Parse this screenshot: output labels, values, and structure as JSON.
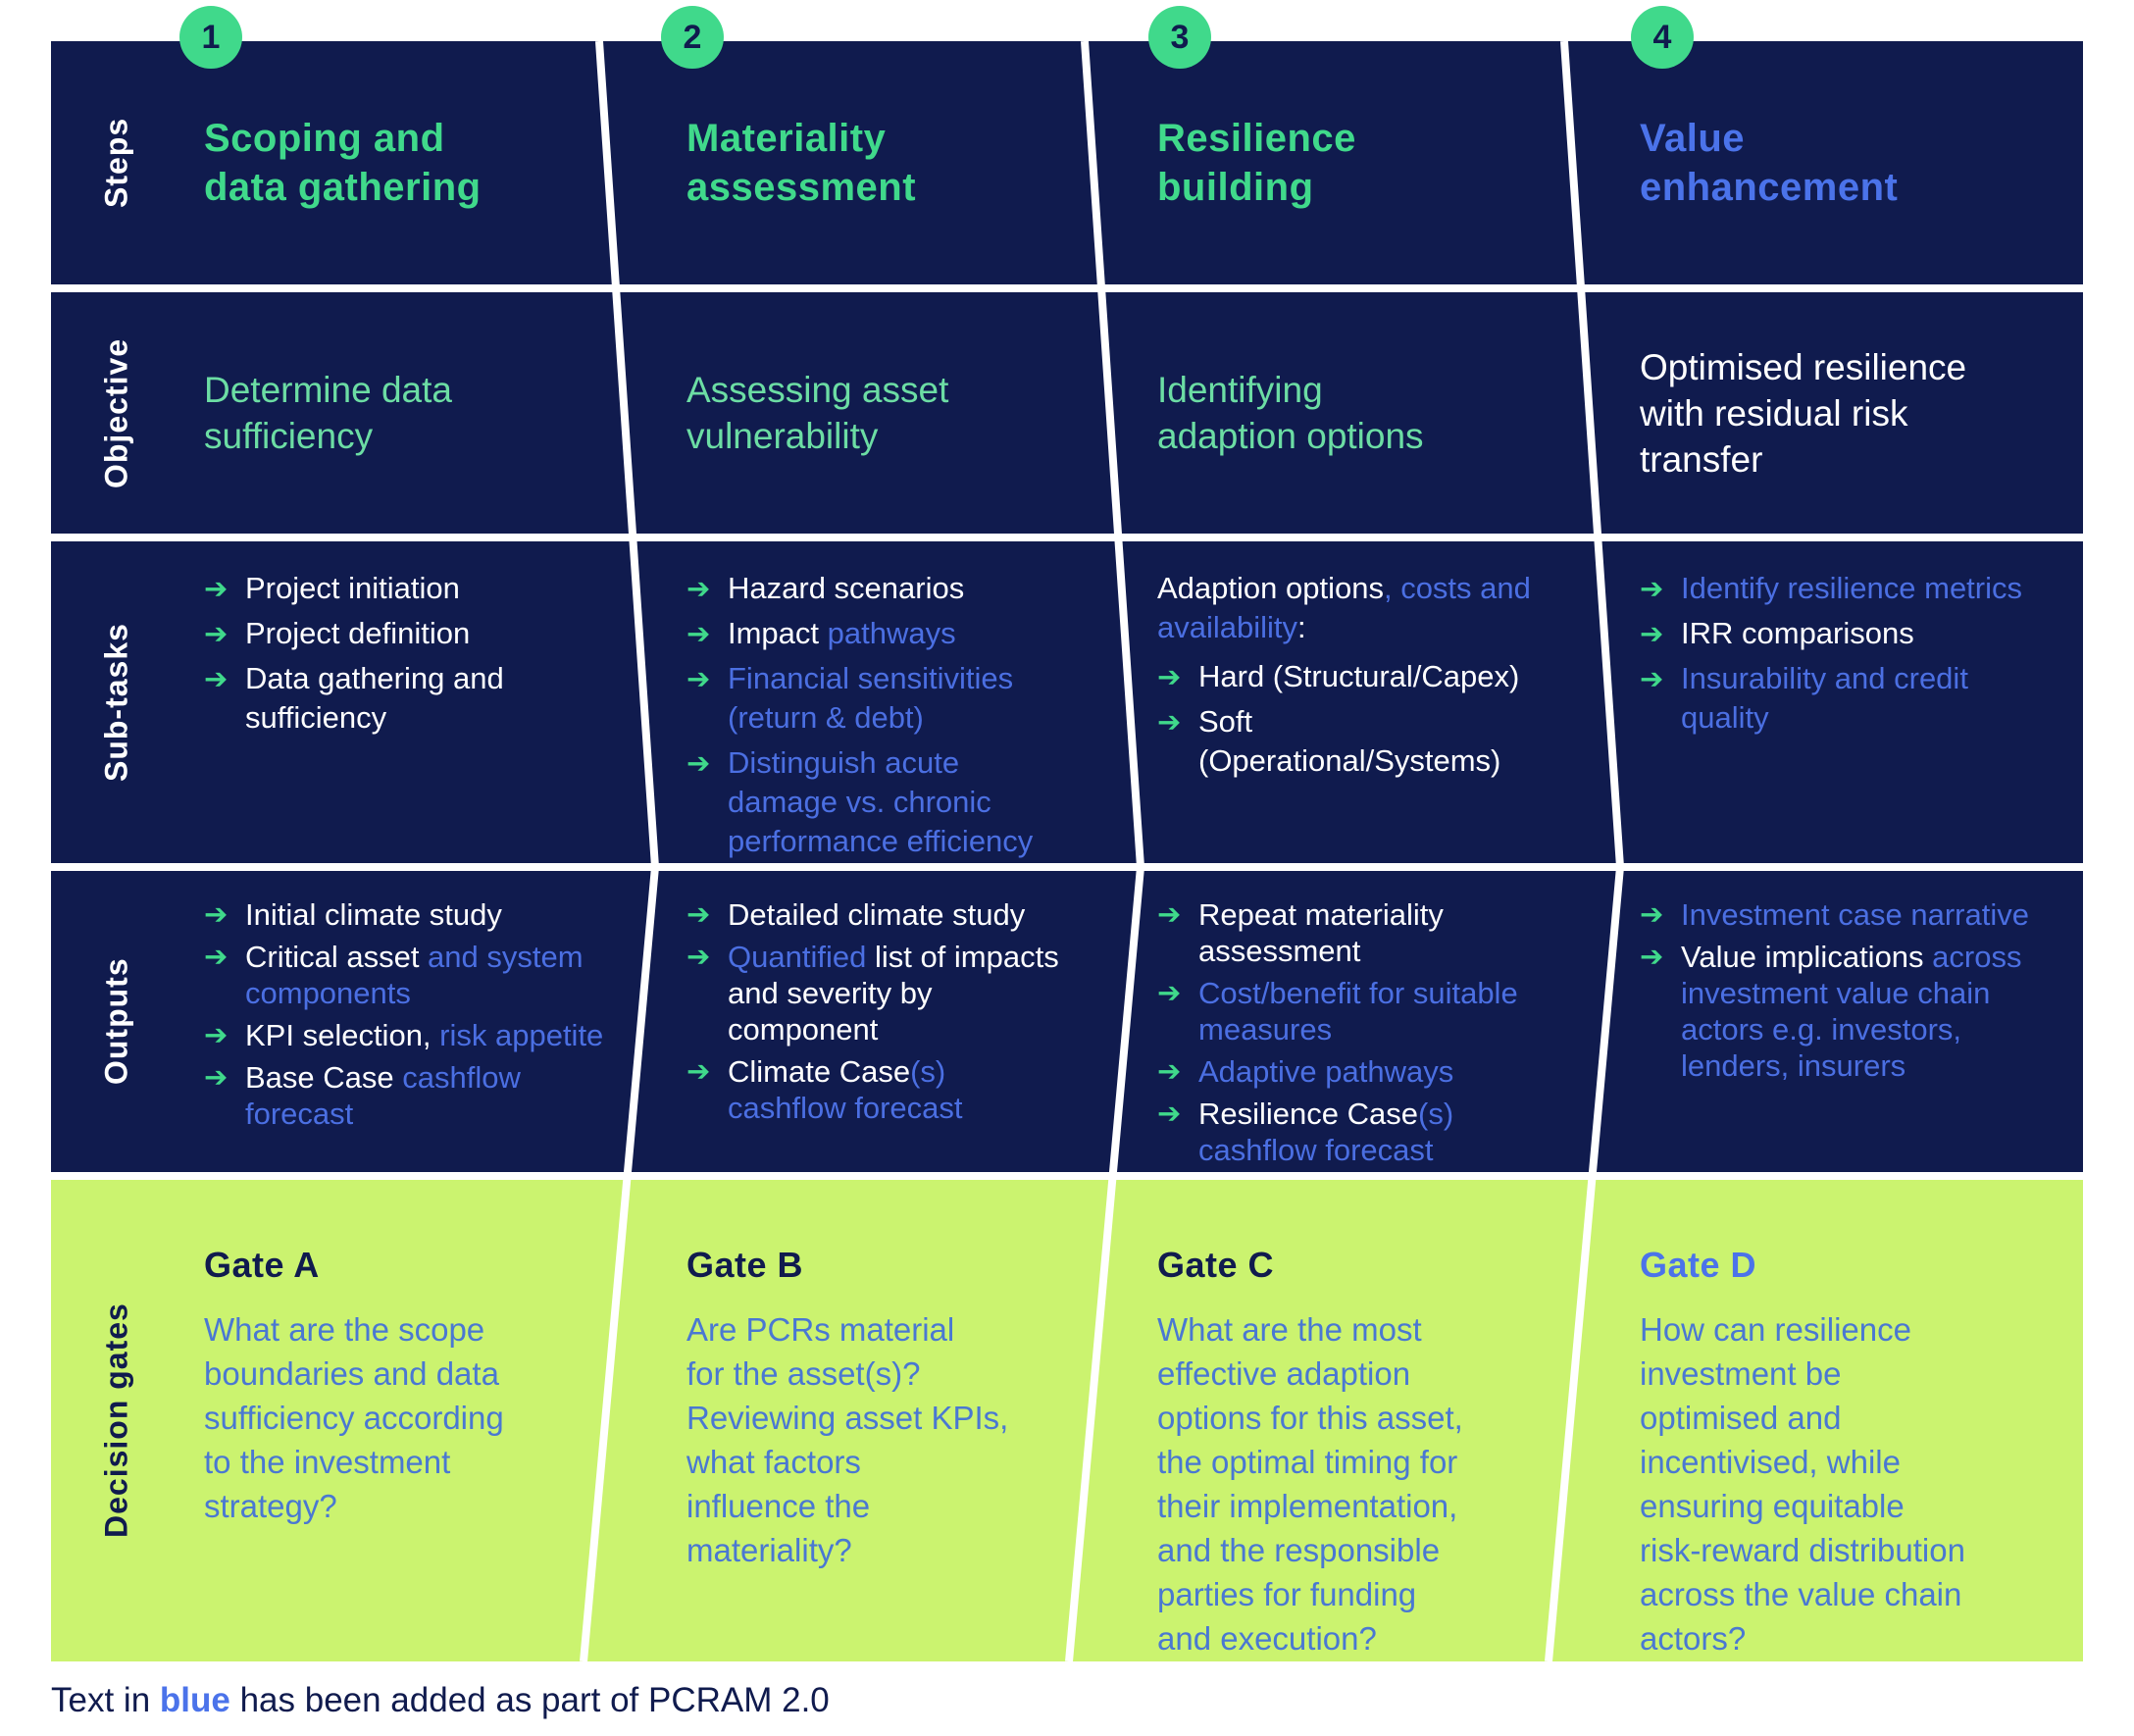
{
  "colors": {
    "navy": "#101b4e",
    "lime": "#cbf36f",
    "green": "#40d98b",
    "green_soft": "#6cdda4",
    "blue": "#4b6fe2",
    "blue_on_lime": "#4a78d2",
    "white": "#ffffff"
  },
  "arrow_glyph": "➔",
  "row_labels": [
    "Steps",
    "Objective",
    "Sub-tasks",
    "Outputs",
    "Decision gates"
  ],
  "footnote": {
    "prefix": "Text in ",
    "highlight": "blue",
    "suffix": " has been added as part of PCRAM 2.0"
  },
  "columns": [
    {
      "number": "1",
      "title": "Scoping and\ndata gathering",
      "title_color": "green",
      "objective": "Determine data\nsufficiency",
      "objective_color": "green",
      "subtasks": {
        "items": [
          {
            "segments": [
              {
                "text": "Project initiation",
                "color": "white"
              }
            ]
          },
          {
            "segments": [
              {
                "text": "Project definition",
                "color": "white"
              }
            ]
          },
          {
            "segments": [
              {
                "text": "Data gathering and sufficiency",
                "color": "white"
              }
            ]
          }
        ]
      },
      "outputs": {
        "items": [
          {
            "segments": [
              {
                "text": "Initial climate study",
                "color": "white"
              }
            ]
          },
          {
            "segments": [
              {
                "text": "Critical asset ",
                "color": "white"
              },
              {
                "text": "and system components",
                "color": "blue"
              }
            ]
          },
          {
            "segments": [
              {
                "text": "KPI selection, ",
                "color": "white"
              },
              {
                "text": "risk appetite",
                "color": "blue"
              }
            ]
          },
          {
            "segments": [
              {
                "text": "Base Case ",
                "color": "white"
              },
              {
                "text": "cashflow forecast",
                "color": "blue"
              }
            ]
          }
        ]
      },
      "gate": {
        "title": "Gate A",
        "title_color": "navy",
        "question": "What are the scope\nboundaries and data\nsufficiency according\nto the investment\nstrategy?"
      }
    },
    {
      "number": "2",
      "title": "Materiality\nassessment",
      "title_color": "green",
      "objective": "Assessing asset\nvulnerability",
      "objective_color": "green",
      "subtasks": {
        "items": [
          {
            "segments": [
              {
                "text": "Hazard scenarios",
                "color": "white"
              }
            ]
          },
          {
            "segments": [
              {
                "text": "Impact ",
                "color": "white"
              },
              {
                "text": "pathways",
                "color": "blue"
              }
            ]
          },
          {
            "segments": [
              {
                "text": "Financial sensitivities (return & debt)",
                "color": "blue"
              }
            ]
          },
          {
            "segments": [
              {
                "text": "Distinguish acute damage vs. chronic performance efficiency",
                "color": "blue"
              }
            ]
          }
        ]
      },
      "outputs": {
        "items": [
          {
            "segments": [
              {
                "text": "Detailed climate study",
                "color": "white"
              }
            ]
          },
          {
            "segments": [
              {
                "text": "Quantified",
                "color": "blue"
              },
              {
                "text": " list of impacts and severity by component",
                "color": "white"
              }
            ]
          },
          {
            "segments": [
              {
                "text": "Climate Case",
                "color": "white"
              },
              {
                "text": "(s) cashflow forecast",
                "color": "blue"
              }
            ]
          }
        ]
      },
      "gate": {
        "title": "Gate B",
        "title_color": "navy",
        "question": "Are PCRs material\nfor the asset(s)?\nReviewing asset KPIs,\nwhat factors\ninfluence the\nmateriality?"
      }
    },
    {
      "number": "3",
      "title": "Resilience\nbuilding",
      "title_color": "green",
      "objective": "Identifying\nadaption options",
      "objective_color": "green",
      "subtasks": {
        "items": [
          {
            "arrow": false,
            "segments": [
              {
                "text": "Adaption options",
                "color": "white"
              },
              {
                "text": ", costs and availability",
                "color": "blue"
              },
              {
                "text": ":",
                "color": "white"
              }
            ]
          },
          {
            "segments": [
              {
                "text": "Hard (Structural/Capex)",
                "color": "white"
              }
            ]
          },
          {
            "segments": [
              {
                "text": "Soft (Operational/Systems)",
                "color": "white"
              }
            ]
          }
        ]
      },
      "outputs": {
        "items": [
          {
            "segments": [
              {
                "text": "Repeat materiality assessment",
                "color": "white"
              }
            ]
          },
          {
            "segments": [
              {
                "text": "Cost/benefit for suitable measures",
                "color": "blue"
              }
            ]
          },
          {
            "segments": [
              {
                "text": "Adaptive pathways",
                "color": "blue"
              }
            ]
          },
          {
            "segments": [
              {
                "text": "Resilience Case",
                "color": "white"
              },
              {
                "text": "(s) cashflow forecast",
                "color": "blue"
              }
            ]
          }
        ]
      },
      "gate": {
        "title": "Gate C",
        "title_color": "navy",
        "question": "What are the most\neffective adaption\noptions for this asset,\nthe optimal timing for\ntheir implementation,\nand the responsible\nparties for funding\nand execution?"
      }
    },
    {
      "number": "4",
      "title": "Value\nenhancement",
      "title_color": "blue",
      "objective": "Optimised resilience\nwith residual risk\ntransfer",
      "objective_color": "white",
      "subtasks": {
        "items": [
          {
            "segments": [
              {
                "text": "Identify resilience metrics",
                "color": "blue"
              }
            ]
          },
          {
            "segments": [
              {
                "text": "IRR comparisons",
                "color": "white"
              }
            ]
          },
          {
            "segments": [
              {
                "text": "Insurability and credit quality",
                "color": "blue"
              }
            ]
          }
        ]
      },
      "outputs": {
        "items": [
          {
            "segments": [
              {
                "text": "Investment case narrative",
                "color": "blue"
              }
            ]
          },
          {
            "segments": [
              {
                "text": "Value implications ",
                "color": "white"
              },
              {
                "text": "across investment value chain actors e.g. investors, lenders, insurers",
                "color": "blue"
              }
            ]
          }
        ]
      },
      "gate": {
        "title": "Gate D",
        "title_color": "blue",
        "question": "How can resilience\ninvestment be\noptimised and\nincentivised, while\nensuring equitable\nrisk-reward distribution\nacross the value chain\nactors?"
      }
    }
  ]
}
